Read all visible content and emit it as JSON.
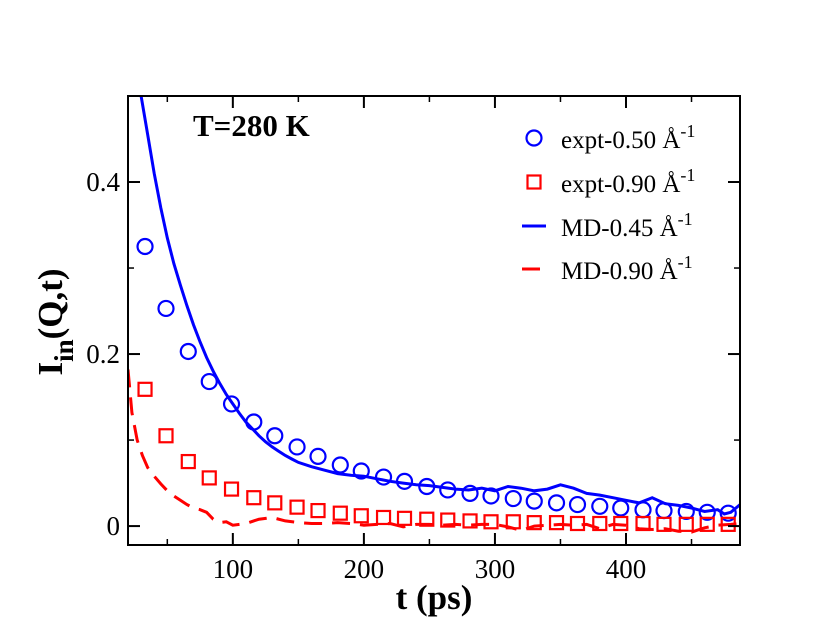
{
  "chart_data": {
    "type": "scatter",
    "annotation": "T=280 K",
    "xlabel": "t (ps)",
    "ylabel": {
      "main": "I",
      "sub": "in",
      "rest": "(Q,t)"
    },
    "xlim": [
      20,
      487
    ],
    "ylim": [
      -0.022,
      0.5
    ],
    "xticks": [
      100,
      200,
      300,
      400
    ],
    "yticks": [
      0,
      0.2,
      0.4
    ],
    "ytick_labels": [
      "0",
      "0.2",
      "0.4"
    ],
    "grid": false,
    "legend_position": "top-right",
    "series": [
      {
        "name": "expt-0.50 Å",
        "unit_exp": "-1",
        "style": "circle",
        "color": "#0000ff",
        "x": [
          33,
          49,
          66,
          82,
          99,
          116,
          132,
          149,
          165,
          182,
          198,
          215,
          231,
          248,
          264,
          281,
          297,
          314,
          330,
          347,
          363,
          380,
          396,
          413,
          429,
          446,
          462,
          478
        ],
        "y": [
          0.325,
          0.253,
          0.203,
          0.168,
          0.142,
          0.121,
          0.105,
          0.092,
          0.081,
          0.071,
          0.064,
          0.057,
          0.052,
          0.046,
          0.042,
          0.038,
          0.035,
          0.032,
          0.029,
          0.027,
          0.025,
          0.023,
          0.021,
          0.019,
          0.018,
          0.017,
          0.016,
          0.015
        ]
      },
      {
        "name": "expt-0.90 Å",
        "unit_exp": "-1",
        "style": "square",
        "color": "#ff0000",
        "x": [
          33,
          49,
          66,
          82,
          99,
          116,
          132,
          149,
          165,
          182,
          198,
          215,
          231,
          248,
          264,
          281,
          297,
          314,
          330,
          347,
          363,
          380,
          396,
          413,
          429,
          446,
          462,
          478
        ],
        "y": [
          0.159,
          0.105,
          0.075,
          0.056,
          0.043,
          0.033,
          0.027,
          0.022,
          0.018,
          0.015,
          0.012,
          0.01,
          0.009,
          0.008,
          0.007,
          0.006,
          0.005,
          0.005,
          0.004,
          0.004,
          0.003,
          0.003,
          0.003,
          0.003,
          0.002,
          0.002,
          0.002,
          0.002
        ]
      },
      {
        "name": "MD-0.45 Å",
        "unit_exp": "-1",
        "style": "solid",
        "color": "#0000ff",
        "x": [
          30,
          35,
          40,
          45,
          50,
          55,
          60,
          65,
          70,
          75,
          80,
          85,
          90,
          95,
          100,
          105,
          110,
          115,
          120,
          125,
          130,
          135,
          140,
          145,
          150,
          160,
          170,
          180,
          190,
          200,
          210,
          220,
          230,
          240,
          250,
          260,
          270,
          280,
          290,
          300,
          310,
          320,
          330,
          340,
          350,
          360,
          370,
          380,
          390,
          400,
          410,
          420,
          430,
          440,
          450,
          460,
          470,
          475,
          480,
          487
        ],
        "y": [
          0.5,
          0.455,
          0.41,
          0.37,
          0.335,
          0.305,
          0.28,
          0.256,
          0.234,
          0.214,
          0.196,
          0.18,
          0.166,
          0.153,
          0.142,
          0.131,
          0.121,
          0.113,
          0.105,
          0.098,
          0.092,
          0.087,
          0.082,
          0.078,
          0.074,
          0.069,
          0.065,
          0.061,
          0.059,
          0.058,
          0.055,
          0.052,
          0.05,
          0.048,
          0.047,
          0.045,
          0.043,
          0.042,
          0.044,
          0.041,
          0.046,
          0.044,
          0.041,
          0.043,
          0.048,
          0.044,
          0.038,
          0.036,
          0.033,
          0.03,
          0.027,
          0.033,
          0.026,
          0.024,
          0.021,
          0.017,
          0.019,
          0.014,
          0.016,
          0.025
        ]
      },
      {
        "name": "MD-0.90 Å",
        "unit_exp": "-1",
        "style": "dashed",
        "color": "#ff0000",
        "x": [
          20,
          23,
          27,
          31,
          35,
          40,
          45,
          50,
          55,
          60,
          65,
          70,
          75,
          80,
          85,
          90,
          95,
          100,
          110,
          120,
          130,
          140,
          150,
          160,
          170,
          180,
          190,
          200,
          210,
          220,
          230,
          240,
          250,
          260,
          270,
          280,
          290,
          300,
          310,
          320,
          330,
          340,
          350,
          360,
          370,
          380,
          390,
          400,
          410,
          420,
          430,
          440,
          450,
          460,
          470,
          480,
          487
        ],
        "y": [
          0.182,
          0.132,
          0.1,
          0.082,
          0.068,
          0.058,
          0.049,
          0.041,
          0.035,
          0.03,
          0.025,
          0.021,
          0.019,
          0.016,
          0.008,
          0.004,
          0.005,
          0.001,
          0.003,
          0.008,
          0.01,
          0.006,
          0.004,
          0.003,
          0.003,
          0.004,
          0.003,
          0.001,
          0.002,
          0.003,
          -0.001,
          0.002,
          0.002,
          0.001,
          0.002,
          0.001,
          0.002,
          0.002,
          -0.001,
          -0.005,
          0.0,
          0.001,
          0.002,
          0.001,
          0.002,
          -0.003,
          0.002,
          0.001,
          -0.003,
          -0.004,
          -0.003,
          -0.006,
          -0.007,
          -0.002,
          0.001,
          0.002,
          0.003
        ]
      }
    ]
  }
}
